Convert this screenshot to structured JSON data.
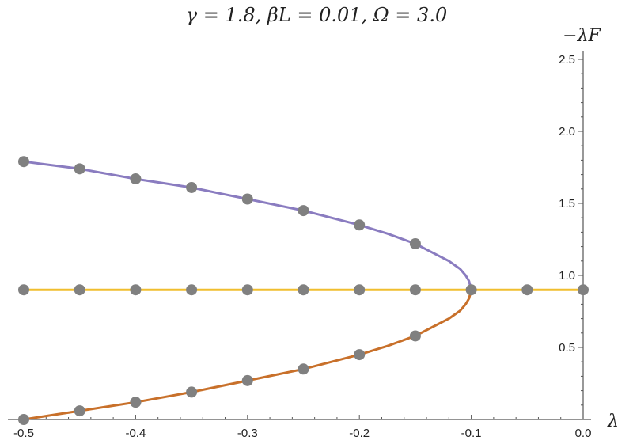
{
  "chart_data": {
    "type": "line",
    "title": "γ = 1.8, βL = 0.01, Ω = 3.0",
    "xlabel": "λ",
    "ylabel": "−λF",
    "xlim": [
      -0.5,
      0.0
    ],
    "ylim": [
      0.0,
      2.5
    ],
    "x_ticks": [
      -0.5,
      -0.4,
      -0.3,
      -0.2,
      -0.1,
      0.0
    ],
    "x_tick_labels": [
      "-0.5",
      "-0.4",
      "-0.3",
      "-0.2",
      "-0.1",
      "0.0"
    ],
    "y_ticks": [
      0.5,
      1.0,
      1.5,
      2.0,
      2.5
    ],
    "y_tick_labels": [
      "0.5",
      "1.0",
      "1.5",
      "2.0",
      "2.5"
    ],
    "grid": false,
    "series": [
      {
        "color": "#8a7cc0",
        "x": [
          -0.1,
          -0.102,
          -0.105,
          -0.11,
          -0.12,
          -0.135,
          -0.15,
          -0.175,
          -0.2,
          -0.225,
          -0.25,
          -0.275,
          -0.3,
          -0.325,
          -0.35,
          -0.375,
          -0.4,
          -0.425,
          -0.45,
          -0.475,
          -0.5
        ],
        "y": [
          0.9,
          0.96,
          1.0,
          1.045,
          1.1,
          1.16,
          1.22,
          1.29,
          1.35,
          1.4,
          1.45,
          1.49,
          1.53,
          1.57,
          1.61,
          1.64,
          1.67,
          1.705,
          1.74,
          1.765,
          1.79
        ]
      },
      {
        "color": "#f0be2e",
        "x": [
          -0.5,
          0.0
        ],
        "y": [
          0.9,
          0.9
        ]
      },
      {
        "color": "#c8702a",
        "x": [
          -0.1,
          -0.102,
          -0.105,
          -0.11,
          -0.12,
          -0.135,
          -0.15,
          -0.175,
          -0.2,
          -0.225,
          -0.25,
          -0.275,
          -0.3,
          -0.325,
          -0.35,
          -0.375,
          -0.4,
          -0.425,
          -0.45,
          -0.475,
          -0.5
        ],
        "y": [
          0.9,
          0.84,
          0.8,
          0.755,
          0.7,
          0.64,
          0.58,
          0.51,
          0.45,
          0.4,
          0.35,
          0.31,
          0.27,
          0.23,
          0.19,
          0.155,
          0.12,
          0.09,
          0.06,
          0.03,
          0.0
        ]
      }
    ],
    "markers": {
      "color": "#808080",
      "points": [
        [
          -0.5,
          1.79
        ],
        [
          -0.45,
          1.74
        ],
        [
          -0.4,
          1.67
        ],
        [
          -0.35,
          1.61
        ],
        [
          -0.3,
          1.53
        ],
        [
          -0.25,
          1.45
        ],
        [
          -0.2,
          1.35
        ],
        [
          -0.15,
          1.22
        ],
        [
          -0.5,
          0.9
        ],
        [
          -0.45,
          0.9
        ],
        [
          -0.4,
          0.9
        ],
        [
          -0.35,
          0.9
        ],
        [
          -0.3,
          0.9
        ],
        [
          -0.25,
          0.9
        ],
        [
          -0.2,
          0.9
        ],
        [
          -0.15,
          0.9
        ],
        [
          -0.1,
          0.9
        ],
        [
          -0.05,
          0.9
        ],
        [
          0.0,
          0.9
        ],
        [
          -0.5,
          0.0
        ],
        [
          -0.45,
          0.06
        ],
        [
          -0.4,
          0.12
        ],
        [
          -0.35,
          0.19
        ],
        [
          -0.3,
          0.27
        ],
        [
          -0.25,
          0.35
        ],
        [
          -0.2,
          0.45
        ],
        [
          -0.15,
          0.58
        ]
      ]
    }
  }
}
